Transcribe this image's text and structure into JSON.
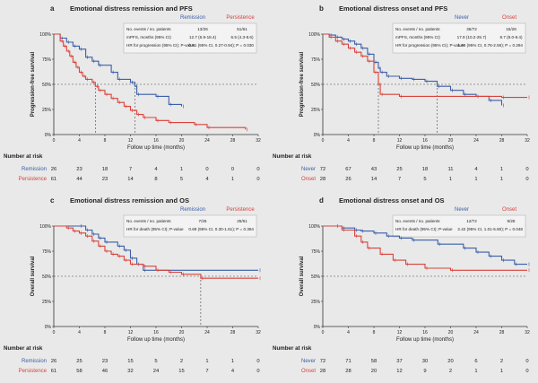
{
  "colors": {
    "blue": "#3a5ea8",
    "red": "#d9423a",
    "axis": "#333333",
    "dash": "#444444"
  },
  "chart_data": [
    {
      "type": "line",
      "letter": "a",
      "title": "Emotional distress remission and PFS",
      "ylabel": "Progression-free survival",
      "xlabel": "Follow up time (months)",
      "xlim": [
        0,
        32
      ],
      "ylim": [
        0,
        100
      ],
      "xticks": [
        "0",
        "4",
        "8",
        "12",
        "16",
        "20",
        "24",
        "28",
        "32"
      ],
      "yticks": [
        "0%",
        "25%",
        "50%",
        "75%",
        "100%"
      ],
      "legend": [
        "Remission",
        "Persistence"
      ],
      "stats": [
        [
          "No. events / no. patients",
          "13/26",
          "51/61"
        ],
        [
          "mPFS, months (95% CI)",
          "12.7 (6.9-18.4)",
          "6.5 (4.3-8.6)"
        ],
        [
          "HR for progression (95% CI); P-value",
          "0.51 (95% CI, 0.27-0.94); P = 0.030",
          ""
        ]
      ],
      "median_lines": [
        6.5,
        12.7
      ],
      "series": [
        {
          "name": "Remission",
          "color": "blue",
          "steps": [
            [
              0,
              100
            ],
            [
              1,
              96
            ],
            [
              2,
              92
            ],
            [
              3,
              88
            ],
            [
              4,
              85
            ],
            [
              5,
              77
            ],
            [
              6,
              73
            ],
            [
              7,
              69
            ],
            [
              9,
              62
            ],
            [
              10,
              55
            ],
            [
              12,
              52
            ],
            [
              12.7,
              48
            ],
            [
              13,
              40
            ],
            [
              16,
              38
            ],
            [
              18,
              30
            ],
            [
              20,
              28
            ]
          ]
        },
        {
          "name": "Persistence",
          "color": "red",
          "steps": [
            [
              0,
              100
            ],
            [
              1,
              93
            ],
            [
              1.5,
              88
            ],
            [
              2,
              83
            ],
            [
              2.5,
              78
            ],
            [
              3,
              72
            ],
            [
              3.5,
              67
            ],
            [
              4,
              62
            ],
            [
              4.5,
              58
            ],
            [
              5,
              55
            ],
            [
              6,
              52
            ],
            [
              6.5,
              48
            ],
            [
              7,
              44
            ],
            [
              8,
              40
            ],
            [
              9,
              36
            ],
            [
              10,
              32
            ],
            [
              11,
              28
            ],
            [
              12,
              24
            ],
            [
              13,
              20
            ],
            [
              14,
              17
            ],
            [
              16,
              14
            ],
            [
              18,
              12
            ],
            [
              22,
              10
            ],
            [
              24,
              7
            ],
            [
              30,
              5
            ]
          ]
        }
      ],
      "risk": {
        "header": "Number at risk",
        "rows": [
          {
            "label": "Remission",
            "color": "blue",
            "values": [
              "26",
              "23",
              "18",
              "7",
              "4",
              "1",
              "0",
              "0",
              "0"
            ]
          },
          {
            "label": "Persistence",
            "color": "red",
            "values": [
              "61",
              "44",
              "23",
              "14",
              "8",
              "5",
              "4",
              "1",
              "0"
            ]
          }
        ]
      }
    },
    {
      "type": "line",
      "letter": "b",
      "title": "Emotional distress onset and PFS",
      "ylabel": "Progression-free survival",
      "xlabel": "Follow up time (months)",
      "xlim": [
        0,
        32
      ],
      "ylim": [
        0,
        100
      ],
      "xticks": [
        "0",
        "4",
        "8",
        "12",
        "16",
        "20",
        "24",
        "28",
        "32"
      ],
      "yticks": [
        "0%",
        "25%",
        "50%",
        "75%",
        "100%"
      ],
      "legend": [
        "Never",
        "Onset"
      ],
      "stats": [
        [
          "No. events / no. patients",
          "35/72",
          "15/28"
        ],
        [
          "mPFS, months (95% CI)",
          "17.9 (10.2-25.7)",
          "8.7 (8.0-9.4)"
        ],
        [
          "HR for progression (95% CI); P-value",
          "1.38 (95% CI, 0.76-2.56); P = 0.294",
          ""
        ]
      ],
      "median_lines": [
        8.7,
        17.9
      ],
      "series": [
        {
          "name": "Never",
          "color": "blue",
          "steps": [
            [
              0,
              100
            ],
            [
              1,
              99
            ],
            [
              2,
              97
            ],
            [
              3,
              95
            ],
            [
              4,
              93
            ],
            [
              5,
              90
            ],
            [
              6,
              86
            ],
            [
              7,
              80
            ],
            [
              8,
              72
            ],
            [
              8.7,
              66
            ],
            [
              9,
              62
            ],
            [
              10,
              58
            ],
            [
              12,
              56
            ],
            [
              14,
              55
            ],
            [
              16,
              53
            ],
            [
              17.9,
              48
            ],
            [
              20,
              44
            ],
            [
              22,
              40
            ],
            [
              24,
              38
            ],
            [
              26,
              34
            ],
            [
              28,
              29
            ]
          ]
        },
        {
          "name": "Onset",
          "color": "red",
          "steps": [
            [
              0,
              100
            ],
            [
              1,
              97
            ],
            [
              2,
              93
            ],
            [
              3,
              90
            ],
            [
              4,
              86
            ],
            [
              5,
              82
            ],
            [
              6,
              78
            ],
            [
              7,
              73
            ],
            [
              8,
              62
            ],
            [
              8.7,
              50
            ],
            [
              9,
              40
            ],
            [
              12,
              38
            ],
            [
              28,
              37
            ],
            [
              32,
              37
            ]
          ]
        }
      ],
      "risk": {
        "header": "Number at risk",
        "rows": [
          {
            "label": "Never",
            "color": "blue",
            "values": [
              "72",
              "67",
              "43",
              "25",
              "18",
              "11",
              "4",
              "1",
              "0"
            ]
          },
          {
            "label": "Onset",
            "color": "red",
            "values": [
              "28",
              "26",
              "14",
              "7",
              "5",
              "1",
              "1",
              "1",
              "0"
            ]
          }
        ]
      }
    },
    {
      "type": "line",
      "letter": "c",
      "title": "Emotional distress remission and OS",
      "ylabel": "Overall survival",
      "xlabel": "Follow up time (months)",
      "xlim": [
        0,
        32
      ],
      "ylim": [
        0,
        100
      ],
      "xticks": [
        "0",
        "4",
        "8",
        "12",
        "16",
        "20",
        "24",
        "28",
        "32"
      ],
      "yticks": [
        "0%",
        "25%",
        "50%",
        "75%",
        "100%"
      ],
      "legend": [
        "Remission",
        "Persistence"
      ],
      "stats": [
        [
          "No. events / no. patients",
          "7/26",
          "25/61"
        ],
        [
          "HR for death (95% CI); P-value",
          "0.69 (95% CI, 0.30-1.61); P = 0.394",
          ""
        ]
      ],
      "median_lines": [
        23
      ],
      "series": [
        {
          "name": "Remission",
          "color": "blue",
          "steps": [
            [
              0,
              100
            ],
            [
              4,
              100
            ],
            [
              5,
              96
            ],
            [
              6,
              92
            ],
            [
              7,
              88
            ],
            [
              8,
              84
            ],
            [
              10,
              80
            ],
            [
              11,
              76
            ],
            [
              12,
              68
            ],
            [
              13,
              62
            ],
            [
              14,
              56
            ],
            [
              32,
              56
            ]
          ]
        },
        {
          "name": "Persistence",
          "color": "red",
          "steps": [
            [
              0,
              100
            ],
            [
              2,
              98
            ],
            [
              3,
              95
            ],
            [
              4,
              93
            ],
            [
              5,
              90
            ],
            [
              6,
              85
            ],
            [
              7,
              80
            ],
            [
              8,
              75
            ],
            [
              9,
              72
            ],
            [
              10,
              70
            ],
            [
              11,
              66
            ],
            [
              12,
              62
            ],
            [
              14,
              60
            ],
            [
              16,
              56
            ],
            [
              18,
              54
            ],
            [
              20,
              52
            ],
            [
              23,
              48
            ],
            [
              32,
              48
            ]
          ]
        }
      ],
      "risk": {
        "header": "Number at risk",
        "rows": [
          {
            "label": "Remission",
            "color": "blue",
            "values": [
              "26",
              "25",
              "23",
              "15",
              "5",
              "2",
              "1",
              "1",
              "0"
            ]
          },
          {
            "label": "Persistence",
            "color": "red",
            "values": [
              "61",
              "58",
              "46",
              "32",
              "24",
              "15",
              "7",
              "4",
              "0"
            ]
          }
        ]
      }
    },
    {
      "type": "line",
      "letter": "d",
      "title": "Emotional distress onset and OS",
      "ylabel": "Overall survival",
      "xlabel": "Follow up time (months)",
      "xlim": [
        0,
        32
      ],
      "ylim": [
        0,
        100
      ],
      "xticks": [
        "0",
        "4",
        "8",
        "12",
        "16",
        "20",
        "24",
        "28",
        "32"
      ],
      "yticks": [
        "0%",
        "25%",
        "50%",
        "75%",
        "100%"
      ],
      "legend": [
        "Never",
        "Onset"
      ],
      "stats": [
        [
          "No. events / no. patients",
          "12/72",
          "9/28"
        ],
        [
          "HR for death (95% CI); P-value",
          "2.42 (95% CI, 1.01-5.80); P = 0.048",
          ""
        ]
      ],
      "median_lines": [],
      "series": [
        {
          "name": "Never",
          "color": "blue",
          "steps": [
            [
              0,
              100
            ],
            [
              2,
              100
            ],
            [
              3,
              98
            ],
            [
              5,
              96
            ],
            [
              6,
              95
            ],
            [
              8,
              93
            ],
            [
              10,
              90
            ],
            [
              12,
              88
            ],
            [
              14,
              86
            ],
            [
              18,
              82
            ],
            [
              22,
              78
            ],
            [
              24,
              74
            ],
            [
              26,
              70
            ],
            [
              28,
              66
            ],
            [
              30,
              62
            ],
            [
              32,
              62
            ]
          ]
        },
        {
          "name": "Onset",
          "color": "red",
          "steps": [
            [
              0,
              100
            ],
            [
              3,
              96
            ],
            [
              5,
              90
            ],
            [
              6,
              84
            ],
            [
              7,
              78
            ],
            [
              9,
              72
            ],
            [
              11,
              66
            ],
            [
              13,
              62
            ],
            [
              16,
              58
            ],
            [
              20,
              56
            ],
            [
              32,
              56
            ]
          ]
        }
      ],
      "risk": {
        "header": "Number at risk",
        "rows": [
          {
            "label": "Never",
            "color": "blue",
            "values": [
              "72",
              "71",
              "58",
              "37",
              "30",
              "20",
              "6",
              "2",
              "0"
            ]
          },
          {
            "label": "Onset",
            "color": "red",
            "values": [
              "28",
              "28",
              "20",
              "12",
              "9",
              "2",
              "1",
              "1",
              "0"
            ]
          }
        ]
      }
    }
  ]
}
